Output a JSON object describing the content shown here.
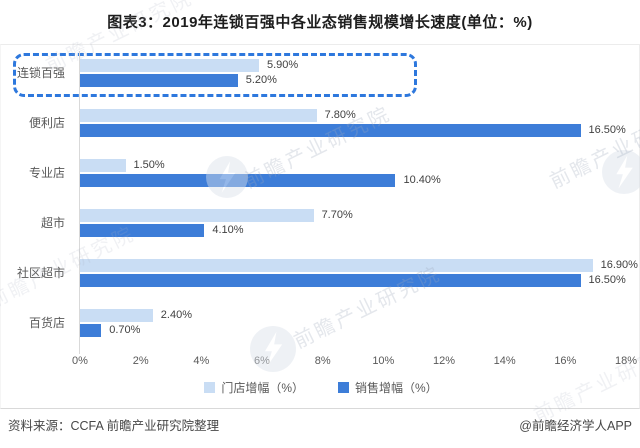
{
  "title": "图表3：2019年连锁百强中各业态销售规模增长速度(单位：%)",
  "chart_data": {
    "type": "bar",
    "orientation": "horizontal",
    "title": "图表3：2019年连锁百强中各业态销售规模增长速度(单位：%)",
    "categories": [
      "连锁百强",
      "便利店",
      "专业店",
      "超市",
      "社区超市",
      "百货店"
    ],
    "series": [
      {
        "name": "门店增幅（%）",
        "color": "#c9ddf4",
        "values": [
          5.9,
          7.8,
          1.5,
          7.7,
          16.9,
          2.4
        ]
      },
      {
        "name": "销售增幅（%）",
        "color": "#3d7dd8",
        "values": [
          5.2,
          16.5,
          10.4,
          4.1,
          16.5,
          0.7
        ]
      }
    ],
    "value_label_format": "0.00%",
    "xlim": [
      0,
      18
    ],
    "x_ticks": [
      "0%",
      "2%",
      "4%",
      "6%",
      "8%",
      "10%",
      "12%",
      "14%",
      "16%",
      "18%"
    ],
    "grid": false,
    "legend_position": "bottom",
    "highlighted_category": "连锁百强",
    "highlight_color": "#2e78dd"
  },
  "legend": {
    "items": [
      {
        "label": "门店增幅（%）",
        "color": "#c9ddf4"
      },
      {
        "label": "销售增幅（%）",
        "color": "#3d7dd8"
      }
    ]
  },
  "footer": {
    "source": "资料来源：CCFA 前瞻产业研究院整理",
    "credit": "@前瞻经济学人APP"
  },
  "watermark": {
    "text": "前瞻产业研究院",
    "logo_icon": "qianzhan-bolt-circle-icon"
  }
}
